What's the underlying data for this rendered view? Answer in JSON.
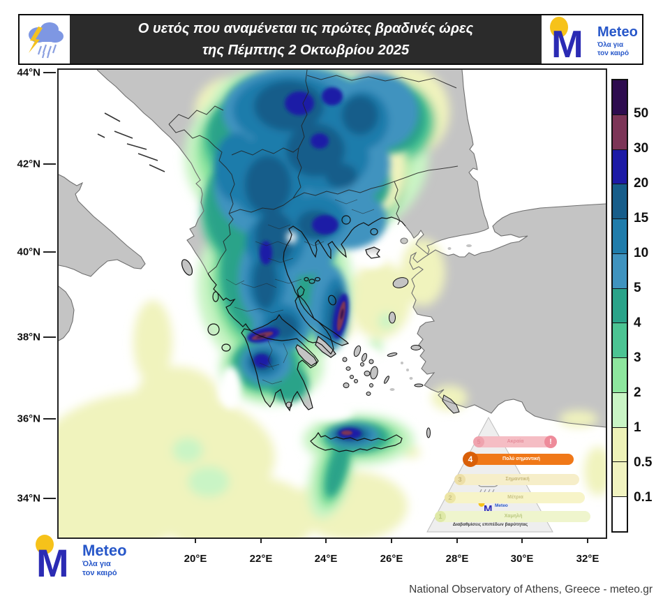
{
  "header": {
    "title_line1": "Ο υετός που αναμένεται τις πρώτες βραδινές ώρες",
    "title_line2": "της Πέμπτης 2 Οκτωβρίου 2025"
  },
  "brand": {
    "name": "Meteo",
    "tagline_line1": "Όλα για",
    "tagline_line2": "τον καιρό"
  },
  "map": {
    "lat_labels": [
      "44°N",
      "42°N",
      "40°N",
      "38°N",
      "36°N",
      "34°N"
    ],
    "lon_labels": [
      "20°E",
      "22°E",
      "24°E",
      "26°E",
      "28°E",
      "30°E",
      "32°E"
    ]
  },
  "colorbar": {
    "labels": [
      "50",
      "30",
      "20",
      "15",
      "10",
      "5",
      "4",
      "3",
      "2",
      "1",
      "0.5",
      "0.1"
    ],
    "colors": [
      "#2e0c4f",
      "#7c3557",
      "#1d1ba6",
      "#175d8a",
      "#1f7cab",
      "#3f93bf",
      "#2aa389",
      "#4cc493",
      "#8de69e",
      "#c9f4c5",
      "#eef2b8",
      "#f1f3c0",
      "#ffffff"
    ]
  },
  "pyramid": {
    "levels": [
      {
        "num": "5",
        "label": "Ακραία",
        "color": "#f5bdc4",
        "bubble": "#efa3ae",
        "text": "#e58d9b",
        "alert": "!"
      },
      {
        "num": "4",
        "label": "Πολύ σημαντική",
        "color": "#f07818",
        "bubble": "#d95f08",
        "text": "#ffffff",
        "active": true
      },
      {
        "num": "3",
        "label": "Σημαντική",
        "color": "#f6eec9",
        "bubble": "#eddfa8",
        "text": "#c5b678"
      },
      {
        "num": "2",
        "label": "Μέτρια",
        "color": "#f7f4c8",
        "bubble": "#ece5a5",
        "text": "#c9c387"
      },
      {
        "num": "1",
        "label": "Χαμηλή",
        "color": "#eff5cd",
        "bubble": "#dfe9a8",
        "text": "#b9c77e"
      }
    ],
    "caption": "Διαβαθμίσεις επιπέδων βαρύτητας"
  },
  "footer": {
    "attribution": "National Observatory of Athens, Greece - meteo.gr"
  }
}
